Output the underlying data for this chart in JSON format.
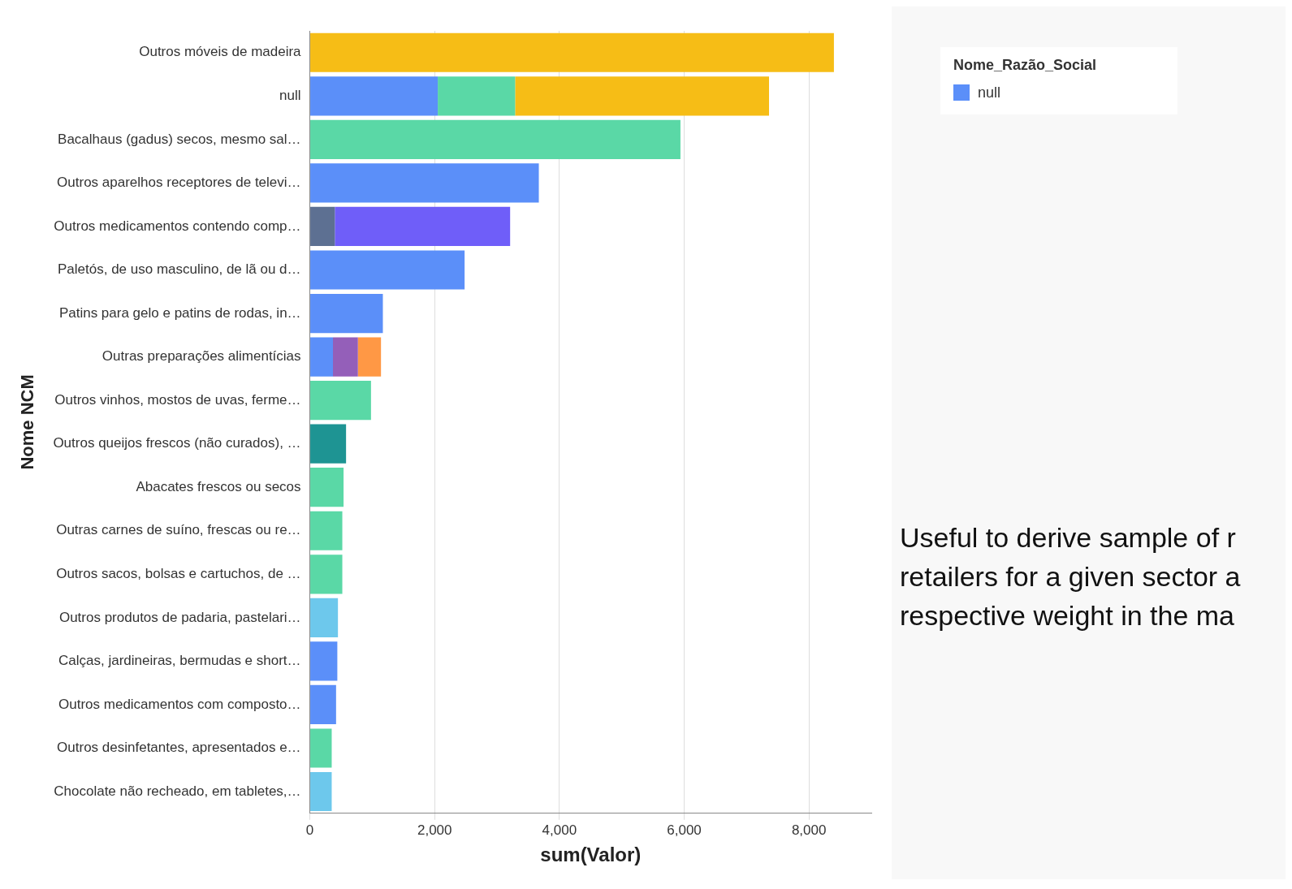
{
  "chart_data": {
    "type": "bar",
    "orientation": "horizontal",
    "stacked": true,
    "xlabel": "sum(Valor)",
    "ylabel": "Nome NCM",
    "legend_title": "Nome_Razão_Social",
    "categories": [
      "Outros móveis de madeira",
      "null",
      "Bacalhaus (gadus) secos, mesmo sal…",
      "Outros aparelhos receptores de televi…",
      "Outros medicamentos contendo comp…",
      "Paletós, de uso masculino, de lã ou d…",
      "Patins para gelo e patins de rodas, in…",
      "Outras preparações alimentícias",
      "Outros vinhos, mostos de uvas, ferme…",
      "Outros queijos frescos (não curados), …",
      "Abacates frescos ou secos",
      "Outras carnes de suíno, frescas ou re…",
      "Outros sacos, bolsas e cartuchos, de …",
      "Outros produtos de padaria, pastelari…",
      "Calças, jardineiras, bermudas e short…",
      "Outros medicamentos com composto…",
      "Outros desinfetantes, apresentados e…",
      "Chocolate não recheado, em tabletes,…"
    ],
    "series": [
      {
        "name": "null",
        "color": "#5b8ff9",
        "values": [
          null,
          2050,
          null,
          3670,
          null,
          2480,
          1170,
          370,
          null,
          null,
          null,
          null,
          null,
          null,
          440,
          420,
          null,
          null
        ]
      },
      {
        "color": "#5ad8a6",
        "values": [
          null,
          1240,
          5940,
          null,
          null,
          null,
          null,
          null,
          980,
          null,
          540,
          520,
          520,
          null,
          null,
          null,
          350,
          null
        ]
      },
      {
        "color": "#5d7092",
        "values": [
          null,
          null,
          null,
          null,
          400,
          null,
          null,
          null,
          null,
          null,
          null,
          null,
          null,
          null,
          null,
          null,
          null,
          null
        ]
      },
      {
        "color": "#f6bd16",
        "values": [
          8400,
          4070,
          null,
          null,
          null,
          null,
          null,
          null,
          null,
          null,
          null,
          null,
          null,
          null,
          null,
          null,
          null,
          null
        ]
      },
      {
        "color": "#6f5ef9",
        "values": [
          null,
          null,
          null,
          null,
          2810,
          null,
          null,
          null,
          null,
          null,
          null,
          null,
          null,
          null,
          null,
          null,
          null,
          null
        ]
      },
      {
        "color": "#6dc8ec",
        "values": [
          null,
          null,
          null,
          null,
          null,
          null,
          null,
          null,
          null,
          null,
          null,
          null,
          null,
          450,
          null,
          null,
          null,
          350
        ]
      },
      {
        "color": "#945fb9",
        "values": [
          null,
          null,
          null,
          null,
          null,
          null,
          null,
          400,
          null,
          null,
          null,
          null,
          null,
          null,
          null,
          null,
          null,
          null
        ]
      },
      {
        "color": "#ff9845",
        "values": [
          null,
          null,
          null,
          null,
          null,
          null,
          null,
          370,
          null,
          null,
          null,
          null,
          null,
          null,
          null,
          null,
          null,
          null
        ]
      },
      {
        "color": "#1e9493",
        "values": [
          null,
          null,
          null,
          null,
          null,
          null,
          null,
          null,
          null,
          580,
          null,
          null,
          null,
          null,
          null,
          null,
          null,
          null
        ]
      }
    ],
    "xlim": [
      0,
      9000
    ],
    "xticks": [
      0,
      {
        "value": 2000,
        "label": "2,000"
      },
      {
        "value": 4000,
        "label": "4,000"
      },
      {
        "value": 6000,
        "label": "6,000"
      },
      {
        "value": 8000,
        "label": "8,000"
      }
    ],
    "grid": "x",
    "legend": "right",
    "annotations": [
      "Useful to derive sample of r",
      "retailers for a given sector a",
      "respective weight in the ma"
    ]
  }
}
